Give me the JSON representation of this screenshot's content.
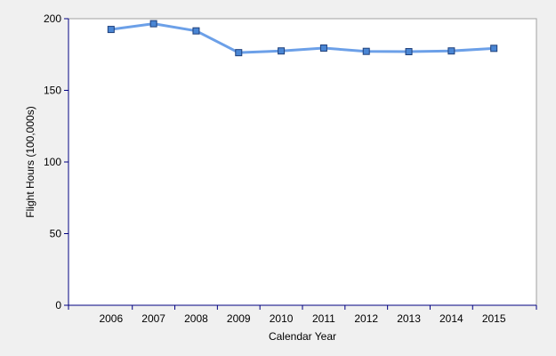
{
  "chart_data": {
    "type": "line",
    "title": "",
    "xlabel": "Calendar Year",
    "ylabel": "Flight Hours (100,000s)",
    "categories": [
      "2006",
      "2007",
      "2008",
      "2009",
      "2010",
      "2011",
      "2012",
      "2013",
      "2014",
      "2015"
    ],
    "series": [
      {
        "values": [
          192.5,
          196.5,
          191.5,
          176.3,
          177.5,
          179.5,
          177.2,
          177.0,
          177.5,
          179.3
        ]
      }
    ],
    "ylim": [
      0,
      200
    ],
    "yticks": [
      0,
      50,
      100,
      150,
      200
    ],
    "grid": false,
    "legend": "none",
    "colors": {
      "line": "#6ca0e8",
      "marker_fill": "#4a86d4",
      "marker_stroke": "#1f3f7a",
      "axis": "#000080",
      "plot_background": "#ffffff",
      "page_background": "#f0f0f0"
    }
  }
}
